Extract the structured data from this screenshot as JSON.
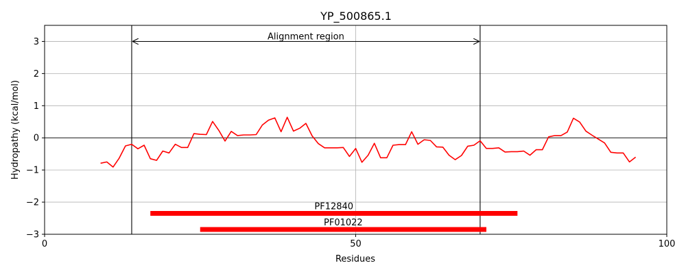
{
  "chart_data": {
    "type": "line",
    "title": "YP_500865.1",
    "xlabel": "Residues",
    "ylabel": "Hydropathy (kcal/mol)",
    "xlim": [
      0,
      100
    ],
    "ylim": [
      -3,
      3.5
    ],
    "xticks": [
      0,
      50,
      100
    ],
    "yticks": [
      -3,
      -2,
      -1,
      0,
      1,
      2,
      3
    ],
    "grid": true,
    "series": [
      {
        "color": "#ff0000",
        "x": [
          9,
          10,
          11,
          12,
          13,
          14,
          15,
          16,
          17,
          18,
          19,
          20,
          21,
          22,
          23,
          24,
          25,
          26,
          27,
          28,
          29,
          30,
          31,
          32,
          33,
          34,
          35,
          36,
          37,
          38,
          39,
          40,
          41,
          42,
          43,
          44,
          45,
          46,
          47,
          48,
          49,
          50,
          51,
          52,
          53,
          54,
          55,
          56,
          57,
          58,
          59,
          60,
          61,
          62,
          63,
          64,
          65,
          66,
          67,
          68,
          69,
          70,
          71,
          72,
          73,
          74,
          75,
          76,
          77,
          78,
          79,
          80,
          81,
          82,
          83,
          84,
          85,
          86,
          87,
          88,
          89,
          90,
          91,
          92,
          93,
          94,
          95
        ],
        "y": [
          -0.79,
          -0.75,
          -0.91,
          -0.63,
          -0.25,
          -0.2,
          -0.34,
          -0.23,
          -0.65,
          -0.7,
          -0.41,
          -0.47,
          -0.2,
          -0.3,
          -0.3,
          0.13,
          0.11,
          0.1,
          0.51,
          0.23,
          -0.1,
          0.2,
          0.07,
          0.09,
          0.09,
          0.1,
          0.4,
          0.55,
          0.62,
          0.19,
          0.64,
          0.21,
          0.3,
          0.45,
          0.06,
          -0.18,
          -0.31,
          -0.31,
          -0.31,
          -0.3,
          -0.58,
          -0.33,
          -0.76,
          -0.54,
          -0.17,
          -0.62,
          -0.62,
          -0.23,
          -0.21,
          -0.21,
          0.19,
          -0.2,
          -0.06,
          -0.08,
          -0.28,
          -0.29,
          -0.54,
          -0.68,
          -0.55,
          -0.26,
          -0.23,
          -0.09,
          -0.33,
          -0.33,
          -0.31,
          -0.44,
          -0.43,
          -0.43,
          -0.41,
          -0.54,
          -0.37,
          -0.37,
          0.03,
          0.07,
          0.07,
          0.18,
          0.61,
          0.49,
          0.21,
          0.08,
          -0.04,
          -0.16,
          -0.45,
          -0.47,
          -0.47,
          -0.75,
          -0.6
        ]
      }
    ],
    "vlines": [
      14,
      70
    ],
    "annotations": [
      {
        "text": "Alignment region",
        "x": 42,
        "y": 3,
        "arrow_from": 14,
        "arrow_to": 70
      }
    ],
    "domains": [
      {
        "name": "PF12840",
        "start": 17,
        "end": 76,
        "y": -2.35
      },
      {
        "name": "PF01022",
        "start": 25,
        "end": 71,
        "y": -2.85
      }
    ]
  }
}
